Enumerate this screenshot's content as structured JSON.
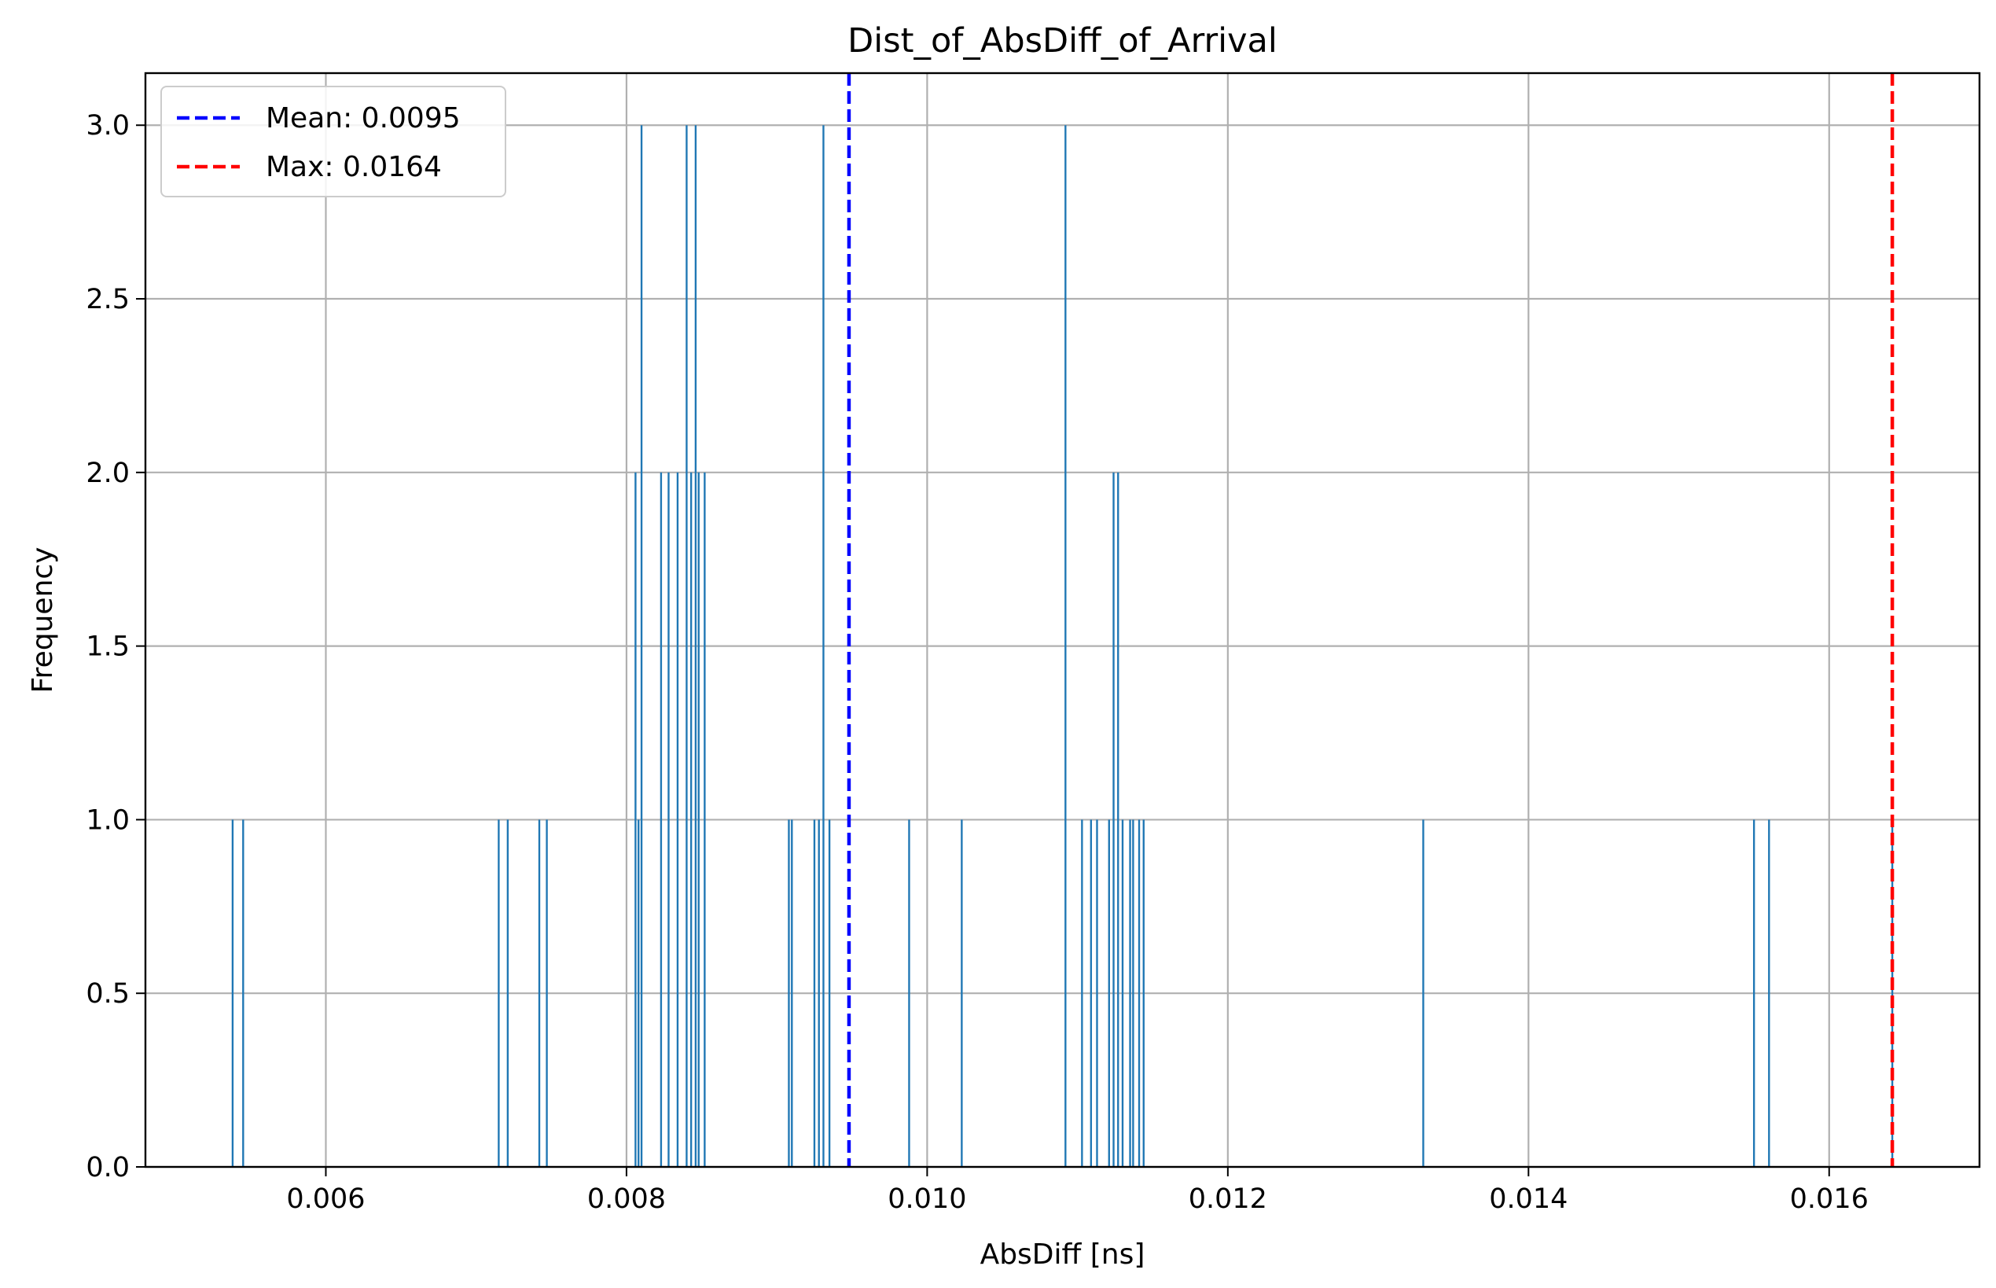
{
  "chart_data": {
    "type": "bar",
    "title": "Dist_of_AbsDiff_of_Arrival",
    "xlabel": "AbsDiff [ns]",
    "ylabel": "Frequency",
    "xlim": [
      0.0048,
      0.017
    ],
    "ylim": [
      0,
      3.15
    ],
    "xticks": [
      0.006,
      0.008,
      0.01,
      0.012,
      0.014,
      0.016
    ],
    "xtick_labels": [
      "0.006",
      "0.008",
      "0.010",
      "0.012",
      "0.014",
      "0.016"
    ],
    "yticks": [
      0,
      0.5,
      1,
      1.5,
      2,
      2.5,
      3
    ],
    "ytick_labels": [
      "0.0",
      "0.5",
      "1.0",
      "1.5",
      "2.0",
      "2.5",
      "3.0"
    ],
    "grid": true,
    "legend_position": "top-left",
    "bar_color": "#1f77b4",
    "bin_width": 1.24e-05,
    "bars": [
      {
        "x": 0.00538,
        "y": 1
      },
      {
        "x": 0.00545,
        "y": 1
      },
      {
        "x": 0.00715,
        "y": 1
      },
      {
        "x": 0.00721,
        "y": 1
      },
      {
        "x": 0.00742,
        "y": 1
      },
      {
        "x": 0.00747,
        "y": 1
      },
      {
        "x": 0.00806,
        "y": 2
      },
      {
        "x": 0.00808,
        "y": 1
      },
      {
        "x": 0.0081,
        "y": 3
      },
      {
        "x": 0.00823,
        "y": 2
      },
      {
        "x": 0.00828,
        "y": 2
      },
      {
        "x": 0.00834,
        "y": 2
      },
      {
        "x": 0.0084,
        "y": 3
      },
      {
        "x": 0.00843,
        "y": 2
      },
      {
        "x": 0.00846,
        "y": 3
      },
      {
        "x": 0.00848,
        "y": 2
      },
      {
        "x": 0.00852,
        "y": 2
      },
      {
        "x": 0.00908,
        "y": 1
      },
      {
        "x": 0.0091,
        "y": 1
      },
      {
        "x": 0.00925,
        "y": 1
      },
      {
        "x": 0.00928,
        "y": 1
      },
      {
        "x": 0.00931,
        "y": 3
      },
      {
        "x": 0.00935,
        "y": 1
      },
      {
        "x": 0.00988,
        "y": 1
      },
      {
        "x": 0.01023,
        "y": 1
      },
      {
        "x": 0.01092,
        "y": 3
      },
      {
        "x": 0.01103,
        "y": 1
      },
      {
        "x": 0.01109,
        "y": 1
      },
      {
        "x": 0.01113,
        "y": 1
      },
      {
        "x": 0.01121,
        "y": 1
      },
      {
        "x": 0.01124,
        "y": 2
      },
      {
        "x": 0.01127,
        "y": 2
      },
      {
        "x": 0.0113,
        "y": 1
      },
      {
        "x": 0.01135,
        "y": 1
      },
      {
        "x": 0.01137,
        "y": 1
      },
      {
        "x": 0.01141,
        "y": 1
      },
      {
        "x": 0.01144,
        "y": 1
      },
      {
        "x": 0.0133,
        "y": 1
      },
      {
        "x": 0.0155,
        "y": 1
      },
      {
        "x": 0.0156,
        "y": 1
      },
      {
        "x": 0.01642,
        "y": 1
      }
    ],
    "vlines": [
      {
        "label": "Mean: 0.0095",
        "x": 0.00948,
        "color": "#0000ff"
      },
      {
        "label": "Max: 0.0164",
        "x": 0.01642,
        "color": "#ff0000"
      }
    ]
  }
}
